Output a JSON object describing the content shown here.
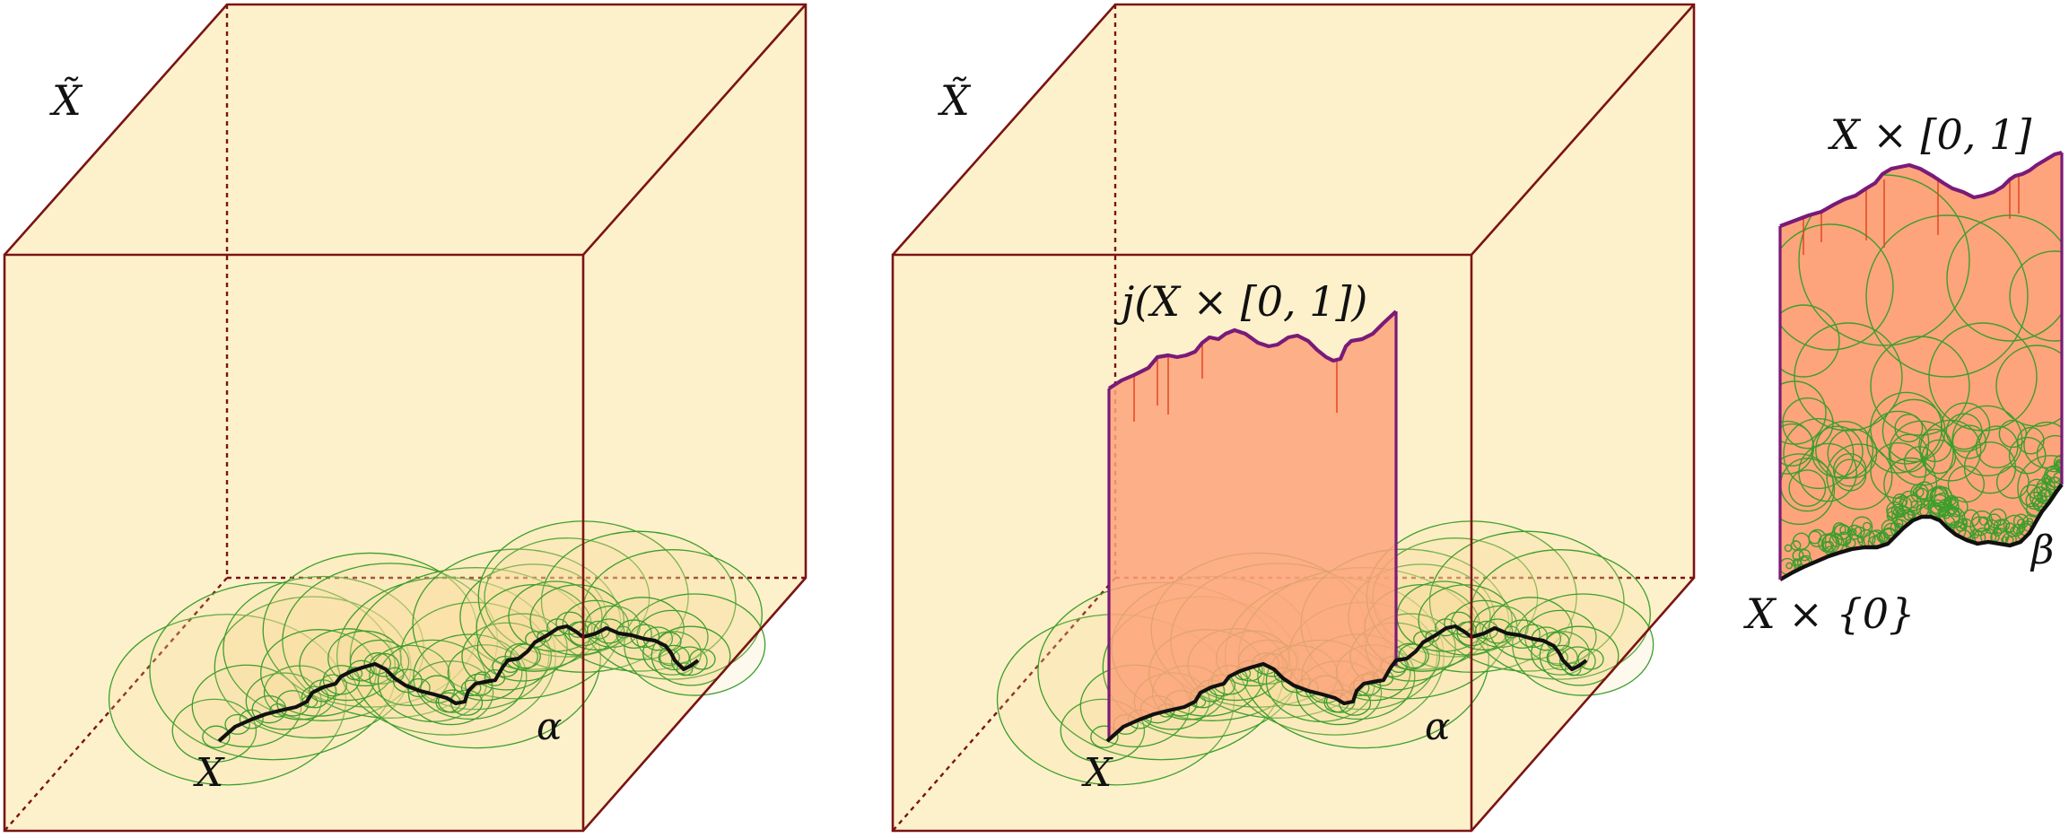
{
  "panels": [
    {
      "space_label": "X̃",
      "curve_label": "X",
      "cover_label": "α"
    },
    {
      "space_label": "X̃",
      "curve_label": "X",
      "cover_label": "α",
      "surface_label": "j(X × [0, 1])"
    }
  ],
  "detached_surface": {
    "top_label": "X × [0, 1]",
    "bottom_label": "X × {0}",
    "cover_label": "β"
  },
  "colors": {
    "cube_fill": "#fdf1cb",
    "cube_edge": "#7b1414",
    "surface_fill": "#fda47c",
    "surface_edge": "#7a1a78",
    "disk_stroke": "#3d9e2c",
    "disk_fill": "#f9dd9b",
    "curve": "#111111",
    "hair": "#e0401c"
  }
}
